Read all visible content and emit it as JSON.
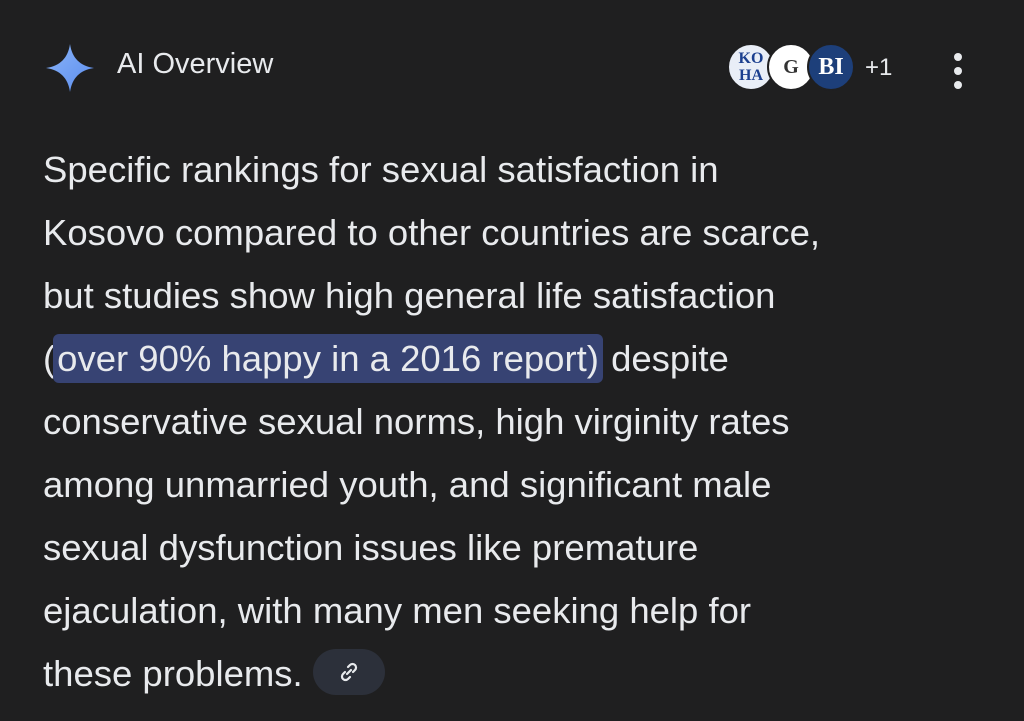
{
  "header": {
    "title": "AI Overview",
    "sources": [
      {
        "top": "KO",
        "bottom": "HA"
      },
      {
        "label": "G"
      },
      {
        "label": "BI"
      }
    ],
    "more_sources": "+1"
  },
  "answer": {
    "lines_before": [
      "Specific rankings for sexual satisfaction in",
      "Kosovo compared to other countries are scarce,",
      "but studies show high general life satisfaction"
    ],
    "highlight_line": {
      "before": "(",
      "highlight": "over 90% happy in a 2016 report)",
      "after": "despite"
    },
    "lines_after": [
      "conservative sexual norms, high virginity rates",
      "among unmarried youth, and significant male",
      "sexual dysfunction issues like premature",
      "ejaculation, with many men seeking help for",
      "these problems."
    ]
  }
}
